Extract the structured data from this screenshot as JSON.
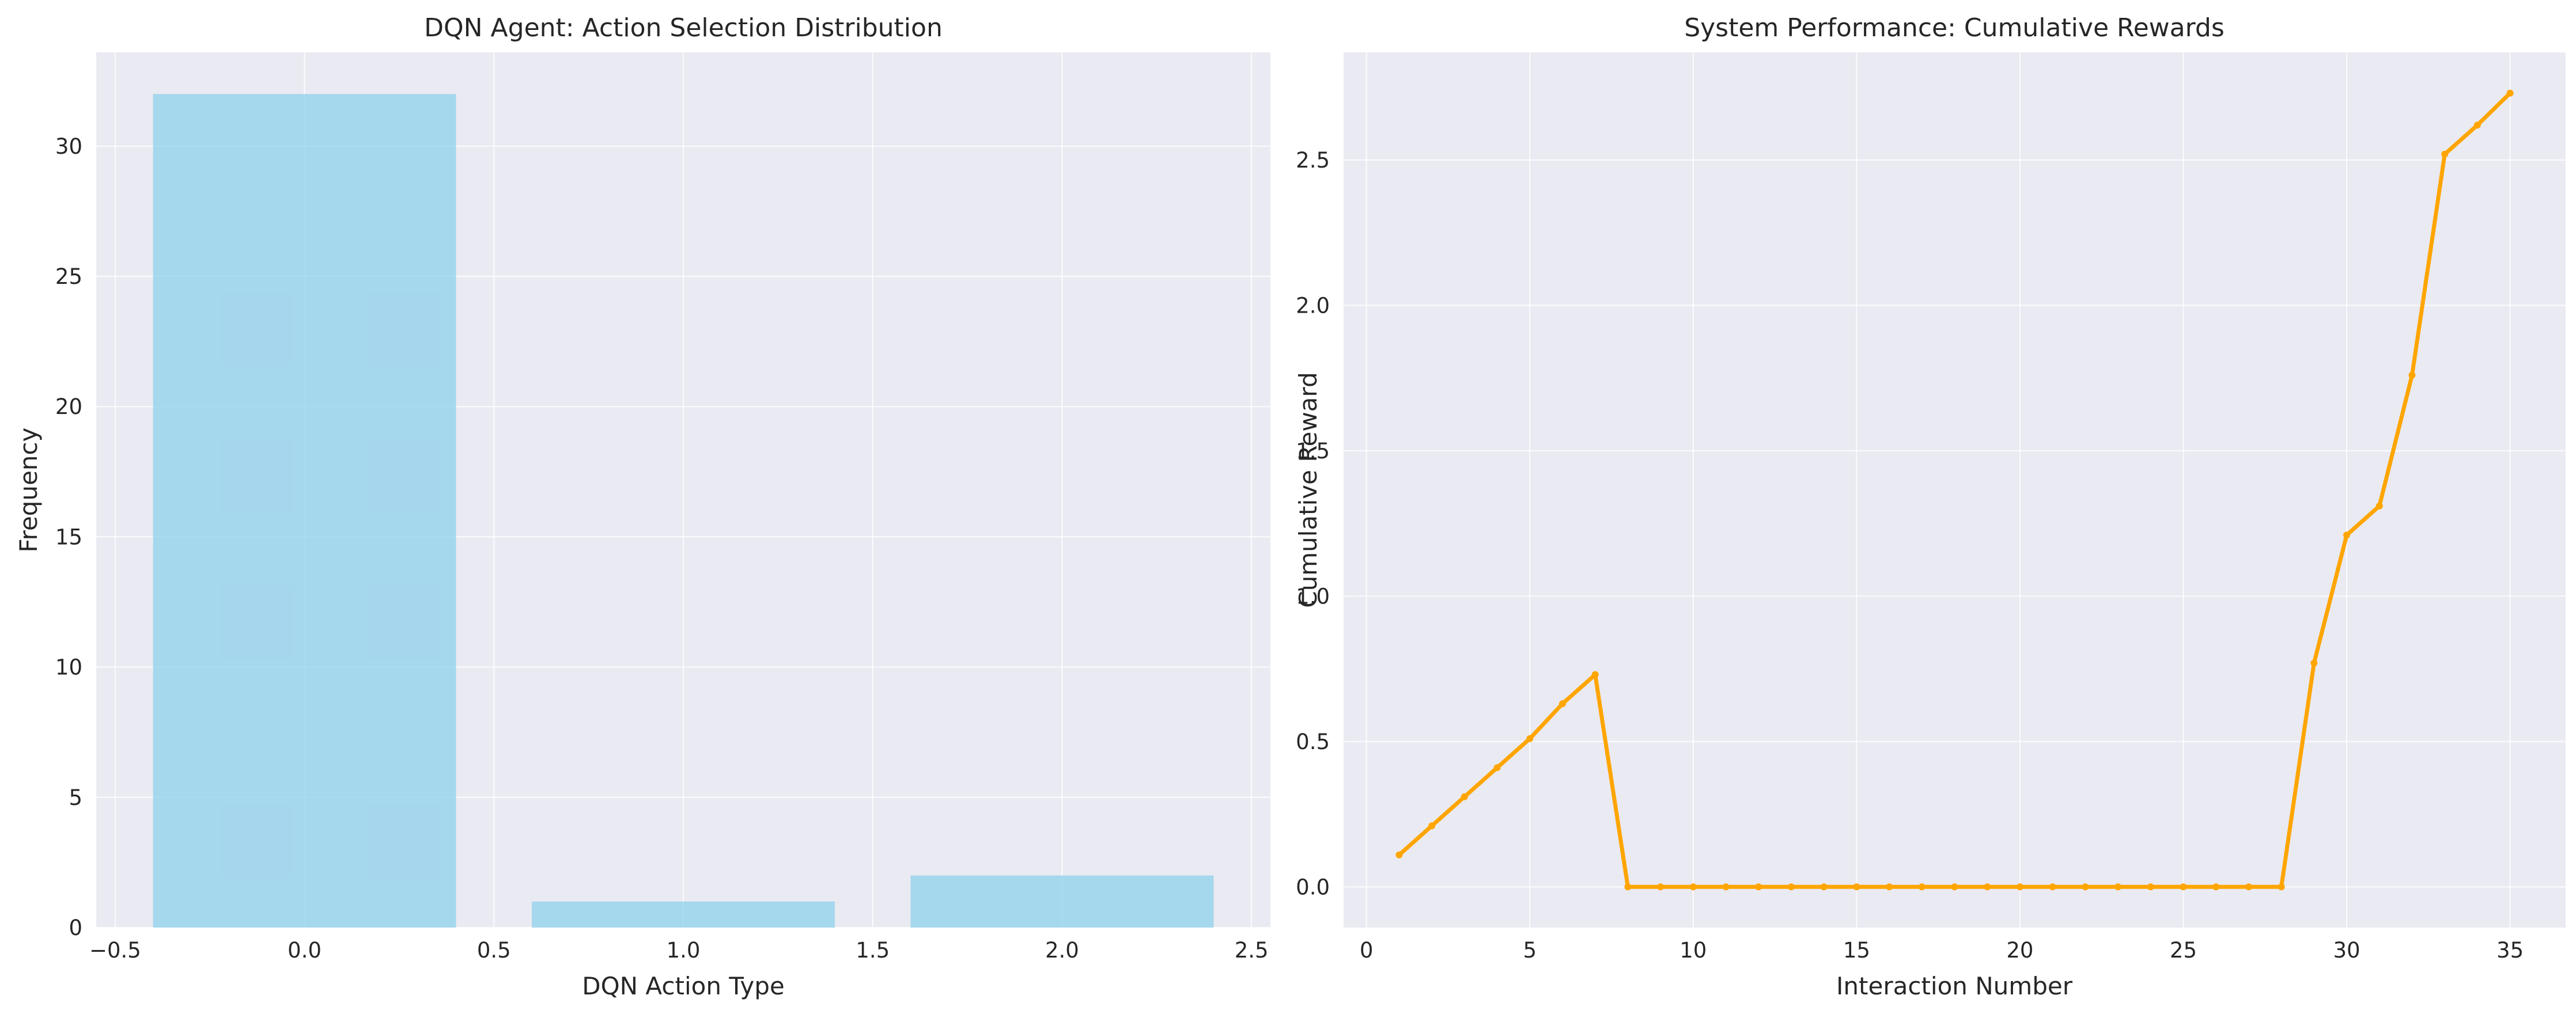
{
  "chart_data": [
    {
      "type": "bar",
      "title": "DQN Agent: Action Selection Distribution",
      "xlabel": "DQN Action Type",
      "ylabel": "Frequency",
      "categories": [
        0,
        1,
        2
      ],
      "values": [
        32,
        1,
        2
      ],
      "bar_width": 0.8,
      "xlim": [
        -0.55,
        2.55
      ],
      "ylim": [
        0,
        33.6
      ],
      "xticks": [
        -0.5,
        0.0,
        0.5,
        1.0,
        1.5,
        2.0,
        2.5
      ],
      "xtick_labels": [
        "−0.5",
        "0.0",
        "0.5",
        "1.0",
        "1.5",
        "2.0",
        "2.5"
      ],
      "yticks": [
        0,
        5,
        10,
        15,
        20,
        25,
        30
      ],
      "ytick_labels": [
        "0",
        "5",
        "10",
        "15",
        "20",
        "25",
        "30"
      ],
      "color": "#87ceeb",
      "grid": true
    },
    {
      "type": "line",
      "title": "System Performance: Cumulative Rewards",
      "xlabel": "Interaction Number",
      "ylabel": "Cumulative Reward",
      "x": [
        1,
        2,
        3,
        4,
        5,
        6,
        7,
        8,
        9,
        10,
        11,
        12,
        13,
        14,
        15,
        16,
        17,
        18,
        19,
        20,
        21,
        22,
        23,
        24,
        25,
        26,
        27,
        28,
        29,
        30,
        31,
        32,
        33,
        34,
        35
      ],
      "y": [
        0.11,
        0.21,
        0.31,
        0.41,
        0.51,
        0.63,
        0.73,
        0,
        0,
        0,
        0,
        0,
        0,
        0,
        0,
        0,
        0,
        0,
        0,
        0,
        0,
        0,
        0,
        0,
        0,
        0,
        0,
        0,
        0.77,
        1.21,
        1.31,
        1.76,
        2.52,
        2.62,
        2.73
      ],
      "xlim": [
        -0.7,
        36.7
      ],
      "ylim": [
        -0.14,
        2.87
      ],
      "xticks": [
        0,
        5,
        10,
        15,
        20,
        25,
        30,
        35
      ],
      "xtick_labels": [
        "0",
        "5",
        "10",
        "15",
        "20",
        "25",
        "30",
        "35"
      ],
      "yticks": [
        0,
        0.5,
        1.0,
        1.5,
        2.0,
        2.5
      ],
      "ytick_labels": [
        "0.0",
        "0.5",
        "1.0",
        "1.5",
        "2.0",
        "2.5"
      ],
      "color": "#ffa500",
      "grid": true
    }
  ]
}
